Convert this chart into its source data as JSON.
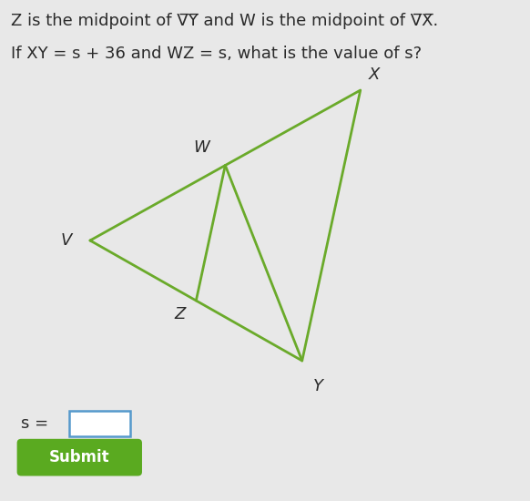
{
  "bg_color": "#e8e8e8",
  "text_color": "#2a2a2a",
  "line_color": "#6aaa2a",
  "line_width": 2.0,
  "V": [
    0.17,
    0.52
  ],
  "X": [
    0.68,
    0.82
  ],
  "Y": [
    0.57,
    0.28
  ],
  "font_size_text": 13,
  "font_size_label": 12,
  "font_size_submit": 12,
  "submit_color": "#5aaa20",
  "submit_text": "Submit",
  "line1": "Z is the midpoint of V̅Y̅ and W is the midpoint of V̅X̅.",
  "line2": "If XY = s + 36 and WZ = s, what is the value of s?"
}
